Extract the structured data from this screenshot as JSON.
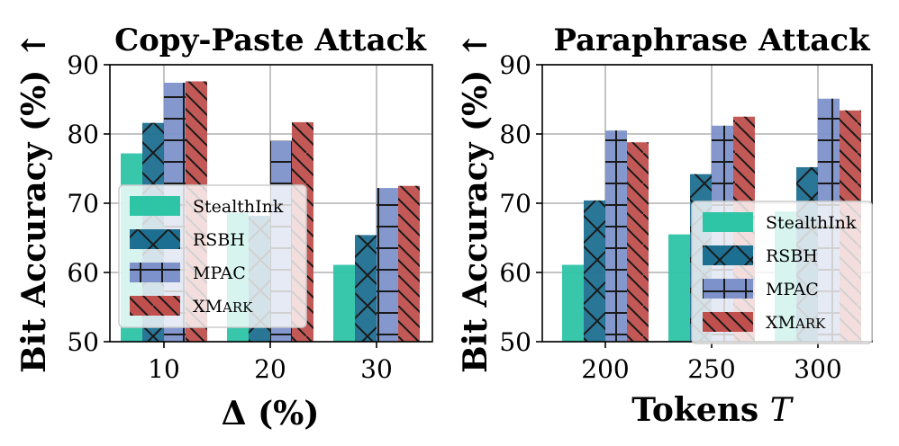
{
  "colors": {
    "StealthInk": "#2ec4a6",
    "RSBH": "#1d6f91",
    "MPAC": "#7d92cb",
    "XMark": "#c0504d"
  },
  "hatches": {
    "StealthInk": "none",
    "RSBH": "x",
    "MPAC": "plus",
    "XMark": "backslash"
  },
  "legend": {
    "entries": [
      "StealthInk",
      "RSBH",
      "MPAC",
      "XMark"
    ],
    "labels": {
      "StealthInk": "StealthInk",
      "RSBH": "RSBH",
      "MPAC": "MPAC",
      "XMark_main": "XM",
      "XMark_sc": "ARK"
    }
  },
  "chart_data": [
    {
      "type": "bar",
      "title": "Copy-Paste Attack",
      "xlabel": "Δ (%)",
      "ylabel": "Bit Accuracy (%) ↑",
      "categories": [
        "10",
        "20",
        "30"
      ],
      "ylim": [
        50,
        90
      ],
      "yticks": [
        "50",
        "60",
        "70",
        "80",
        "90"
      ],
      "grid": true,
      "legend_position": "center-left",
      "series": [
        {
          "name": "StealthInk",
          "values": [
            77.2,
            68.6,
            61.1
          ]
        },
        {
          "name": "RSBH",
          "values": [
            81.6,
            68.2,
            65.4
          ]
        },
        {
          "name": "MPAC",
          "values": [
            87.4,
            79.0,
            72.2
          ]
        },
        {
          "name": "XMark",
          "values": [
            87.6,
            81.7,
            72.5
          ]
        }
      ]
    },
    {
      "type": "bar",
      "title": "Paraphrase Attack",
      "xlabel": "Tokens T",
      "ylabel": "Bit Accuracy (%) ↑",
      "categories": [
        "200",
        "250",
        "300"
      ],
      "ylim": [
        50,
        90
      ],
      "yticks": [
        "50",
        "60",
        "70",
        "80",
        "90"
      ],
      "grid": true,
      "legend_position": "center-right",
      "series": [
        {
          "name": "StealthInk",
          "values": [
            61.1,
            65.5,
            68.8
          ]
        },
        {
          "name": "RSBH",
          "values": [
            70.4,
            74.2,
            75.2
          ]
        },
        {
          "name": "MPAC",
          "values": [
            80.5,
            81.2,
            85.1
          ]
        },
        {
          "name": "XMark",
          "values": [
            78.8,
            82.5,
            83.4
          ]
        }
      ]
    }
  ]
}
